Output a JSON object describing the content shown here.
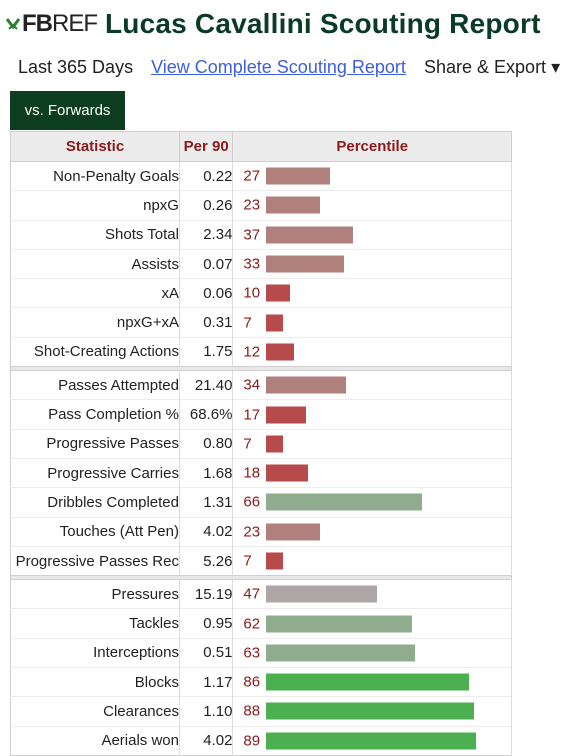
{
  "brand": {
    "fb": "FB",
    "ref": "REF"
  },
  "title": "Lucas Cavallini Scouting Report",
  "subnav": {
    "period": "Last 365 Days",
    "link": "View Complete Scouting Report",
    "share": "Share & Export ▾"
  },
  "tab": "vs. Forwards",
  "columns": {
    "statistic": "Statistic",
    "per90": "Per 90",
    "percentile": "Percentile"
  },
  "colors": {
    "title": "#0a3b25",
    "tab_bg": "#0b3d1e",
    "header_text": "#8b1a1a",
    "bar_low": "#b74a4a",
    "bar_mid_low": "#b0807c",
    "bar_neutral": "#ada5a6",
    "bar_mid_high": "#8fac8e",
    "bar_high": "#4caf50"
  },
  "groups": [
    [
      {
        "stat": "Non-Penalty Goals",
        "per90": "0.22",
        "pct": 27
      },
      {
        "stat": "npxG",
        "per90": "0.26",
        "pct": 23
      },
      {
        "stat": "Shots Total",
        "per90": "2.34",
        "pct": 37
      },
      {
        "stat": "Assists",
        "per90": "0.07",
        "pct": 33
      },
      {
        "stat": "xA",
        "per90": "0.06",
        "pct": 10
      },
      {
        "stat": "npxG+xA",
        "per90": "0.31",
        "pct": 7
      },
      {
        "stat": "Shot-Creating Actions",
        "per90": "1.75",
        "pct": 12
      }
    ],
    [
      {
        "stat": "Passes Attempted",
        "per90": "21.40",
        "pct": 34
      },
      {
        "stat": "Pass Completion %",
        "per90": "68.6%",
        "pct": 17
      },
      {
        "stat": "Progressive Passes",
        "per90": "0.80",
        "pct": 7
      },
      {
        "stat": "Progressive Carries",
        "per90": "1.68",
        "pct": 18
      },
      {
        "stat": "Dribbles Completed",
        "per90": "1.31",
        "pct": 66
      },
      {
        "stat": "Touches (Att Pen)",
        "per90": "4.02",
        "pct": 23
      },
      {
        "stat": "Progressive Passes Rec",
        "per90": "5.26",
        "pct": 7
      }
    ],
    [
      {
        "stat": "Pressures",
        "per90": "15.19",
        "pct": 47
      },
      {
        "stat": "Tackles",
        "per90": "0.95",
        "pct": 62
      },
      {
        "stat": "Interceptions",
        "per90": "0.51",
        "pct": 63
      },
      {
        "stat": "Blocks",
        "per90": "1.17",
        "pct": 86
      },
      {
        "stat": "Clearances",
        "per90": "1.10",
        "pct": 88
      },
      {
        "stat": "Aerials won",
        "per90": "4.02",
        "pct": 89
      }
    ]
  ]
}
